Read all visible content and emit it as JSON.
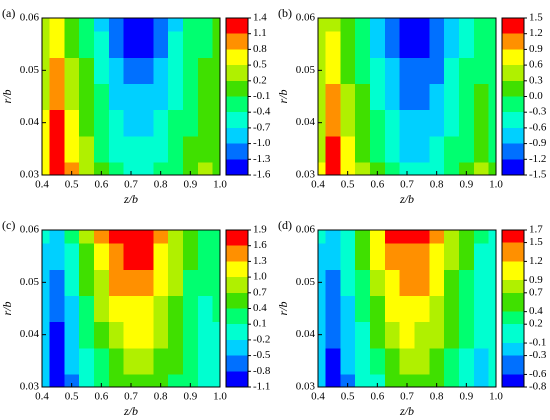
{
  "chart_data": [
    {
      "type": "contour",
      "panel_label": "(a)",
      "xlabel": "z/b",
      "ylabel": "r/b",
      "xlim": [
        0.4,
        1.0
      ],
      "ylim": [
        0.03,
        0.06
      ],
      "xticks": [
        0.4,
        0.5,
        0.6,
        0.7,
        0.8,
        0.9,
        {
          "value": 1,
          "label": "1.0"
        }
      ],
      "yticks": [
        0.03,
        0.04,
        0.05,
        0.06
      ],
      "levels": [
        -1.6,
        -1.3,
        {
          "value": -1,
          "label": "-1.0"
        },
        -0.7,
        -0.4,
        -0.1,
        0.2,
        0.5,
        0.8,
        1.1,
        1.4
      ],
      "colors": [
        "#0000ff",
        "#0070ff",
        "#00d0ff",
        "#00ffd0",
        "#00ff70",
        "#40e000",
        "#b0f000",
        "#ffff00",
        "#ff9000",
        "#ff0000"
      ],
      "x": [
        0.4,
        0.45,
        0.5,
        0.55,
        0.6,
        0.65,
        0.7,
        0.75,
        0.8,
        0.85,
        0.9,
        0.95,
        1
      ],
      "y": [
        0.03,
        0.035,
        0.04,
        0.045,
        0.05,
        0.055,
        0.06
      ],
      "z": [
        [
          0.6,
          1.4,
          0.8,
          0.3,
          0,
          -0.3,
          -0.5,
          -0.5,
          -0.35,
          -0.2,
          0,
          0.25,
          0
        ],
        [
          0.55,
          1.25,
          0.67,
          0.2,
          -0.13,
          -0.45,
          -0.67,
          -0.67,
          -0.49,
          -0.3,
          -0.07,
          0.17,
          -0.02
        ],
        [
          0.5,
          1.1,
          0.53,
          0.1,
          -0.27,
          -0.6,
          -0.83,
          -0.83,
          -0.63,
          -0.4,
          -0.13,
          0.1,
          -0.03
        ],
        [
          0.45,
          0.95,
          0.4,
          0,
          -0.4,
          -0.75,
          -1.0,
          -1.0,
          -0.78,
          -0.5,
          -0.2,
          0.03,
          -0.05
        ],
        [
          0.4,
          0.8,
          0.27,
          -0.1,
          -0.53,
          -0.9,
          -1.17,
          -1.17,
          -0.92,
          -0.6,
          -0.27,
          -0.05,
          -0.07
        ],
        [
          0.35,
          0.65,
          0.13,
          -0.2,
          -0.67,
          -1.05,
          -1.33,
          -1.33,
          -1.06,
          -0.7,
          -0.33,
          -0.13,
          -0.08
        ],
        [
          0.3,
          0.5,
          0,
          -0.3,
          -0.8,
          -1.2,
          -1.5,
          -1.5,
          -1.2,
          -0.8,
          -0.4,
          -0.2,
          -0.1
        ]
      ]
    },
    {
      "type": "contour",
      "panel_label": "(b)",
      "xlabel": "z/b",
      "ylabel": "r/b",
      "xlim": [
        0.4,
        1.0
      ],
      "ylim": [
        0.03,
        0.06
      ],
      "xticks": [
        0.4,
        0.5,
        0.6,
        0.7,
        0.8,
        0.9,
        {
          "value": 1,
          "label": "1.0"
        }
      ],
      "yticks": [
        0.03,
        0.04,
        0.05,
        0.06
      ],
      "levels": [
        -1.5,
        -1.2,
        -0.9,
        -0.6,
        -0.3,
        {
          "value": 0,
          "label": "0.0"
        },
        0.3,
        0.6,
        0.9,
        1.2,
        1.5
      ],
      "colors": [
        "#0000ff",
        "#0070ff",
        "#00d0ff",
        "#00ffd0",
        "#00ff70",
        "#40e000",
        "#b0f000",
        "#ffff00",
        "#ff9000",
        "#ff0000"
      ],
      "x": [
        0.4,
        0.45,
        0.5,
        0.55,
        0.6,
        0.65,
        0.7,
        0.75,
        0.8,
        0.85,
        0.9,
        0.95,
        1
      ],
      "y": [
        0.03,
        0.035,
        0.04,
        0.045,
        0.05,
        0.055,
        0.06
      ],
      "z": [
        [
          0.6,
          1.45,
          0.8,
          0.3,
          0,
          -0.3,
          -0.5,
          -0.5,
          -0.35,
          -0.2,
          0,
          0.3,
          0
        ],
        [
          0.55,
          1.25,
          0.67,
          0.2,
          -0.13,
          -0.45,
          -0.67,
          -0.67,
          -0.49,
          -0.3,
          -0.07,
          0.17,
          -0.02
        ],
        [
          0.5,
          1.1,
          0.53,
          0.1,
          -0.27,
          -0.6,
          -0.83,
          -0.83,
          -0.63,
          -0.4,
          -0.13,
          0.1,
          -0.03
        ],
        [
          0.45,
          0.95,
          0.4,
          0,
          -0.4,
          -0.75,
          -1.0,
          -1.0,
          -0.78,
          -0.5,
          -0.2,
          0.03,
          -0.05
        ],
        [
          0.4,
          0.8,
          0.27,
          -0.1,
          -0.53,
          -0.9,
          -1.17,
          -1.17,
          -0.92,
          -0.6,
          -0.27,
          -0.05,
          -0.07
        ],
        [
          0.35,
          0.65,
          0.13,
          -0.2,
          -0.67,
          -1.05,
          -1.33,
          -1.33,
          -1.06,
          -0.7,
          -0.33,
          -0.13,
          -0.08
        ],
        [
          0.3,
          0.5,
          0,
          -0.3,
          -0.8,
          -1.2,
          -1.5,
          -1.5,
          -1.2,
          -0.8,
          -0.4,
          -0.2,
          -0.1
        ]
      ]
    },
    {
      "type": "contour",
      "panel_label": "(c)",
      "xlabel": "z/b",
      "ylabel": "r/b",
      "xlim": [
        0.4,
        1.0
      ],
      "ylim": [
        0.03,
        0.06
      ],
      "xticks": [
        0.4,
        0.5,
        0.6,
        0.7,
        0.8,
        0.9,
        {
          "value": 1,
          "label": "1.0"
        }
      ],
      "yticks": [
        0.03,
        0.04,
        0.05,
        0.06
      ],
      "levels": [
        -1.1,
        -0.8,
        -0.5,
        -0.2,
        0.1,
        0.4,
        0.7,
        {
          "value": 1,
          "label": "1.0"
        },
        1.3,
        1.6,
        1.9
      ],
      "colors": [
        "#0000ff",
        "#0070ff",
        "#00d0ff",
        "#00ffd0",
        "#00ff70",
        "#40e000",
        "#b0f000",
        "#ffff00",
        "#ff9000",
        "#ff0000"
      ],
      "x": [
        0.4,
        0.45,
        0.5,
        0.55,
        0.6,
        0.65,
        0.7,
        0.75,
        0.8,
        0.85,
        0.9,
        0.95,
        1
      ],
      "y": [
        0.03,
        0.035,
        0.04,
        0.045,
        0.05,
        0.055,
        0.06
      ],
      "z": [
        [
          -0.5,
          -1.1,
          -0.6,
          -0.2,
          0.1,
          0.4,
          0.6,
          0.6,
          0.5,
          0.3,
          0.1,
          -0.2,
          0
        ],
        [
          -0.45,
          -0.97,
          -0.48,
          -0.05,
          0.3,
          0.63,
          0.82,
          0.8,
          0.65,
          0.4,
          0.17,
          -0.12,
          0.03
        ],
        [
          -0.4,
          -0.83,
          -0.37,
          0.1,
          0.5,
          0.87,
          1.03,
          1.0,
          0.8,
          0.5,
          0.23,
          -0.03,
          0.07
        ],
        [
          -0.35,
          -0.7,
          -0.25,
          0.25,
          0.7,
          1.1,
          1.25,
          1.2,
          0.95,
          0.6,
          0.3,
          0.05,
          0.1
        ],
        [
          -0.3,
          -0.57,
          -0.13,
          0.4,
          0.9,
          1.33,
          1.47,
          1.4,
          1.1,
          0.7,
          0.37,
          0.13,
          0.13
        ],
        [
          -0.25,
          -0.43,
          -0.02,
          0.55,
          1.1,
          1.57,
          1.68,
          1.6,
          1.25,
          0.8,
          0.43,
          0.22,
          0.17
        ],
        [
          -0.2,
          -0.3,
          0.1,
          0.7,
          1.3,
          1.8,
          1.9,
          1.8,
          1.4,
          0.9,
          0.5,
          0.3,
          0.2
        ]
      ]
    },
    {
      "type": "contour",
      "panel_label": "(d)",
      "xlabel": "z/b",
      "ylabel": "r/b",
      "xlim": [
        0.4,
        1.0
      ],
      "ylim": [
        0.03,
        0.06
      ],
      "xticks": [
        0.4,
        0.5,
        0.6,
        0.7,
        0.8,
        0.9,
        {
          "value": 1,
          "label": "1.0"
        }
      ],
      "yticks": [
        0.03,
        0.04,
        0.05,
        0.06
      ],
      "levels": [
        -0.8,
        -0.6,
        -0.3,
        -0.1,
        0.2,
        0.4,
        0.7,
        0.9,
        1.2,
        1.5,
        1.7
      ],
      "colors": [
        "#0000ff",
        "#0070ff",
        "#00d0ff",
        "#00ffd0",
        "#00ff70",
        "#40e000",
        "#b0f000",
        "#ffff00",
        "#ff9000",
        "#ff0000"
      ],
      "x": [
        0.4,
        0.45,
        0.5,
        0.55,
        0.6,
        0.65,
        0.7,
        0.75,
        0.8,
        0.85,
        0.9,
        0.95,
        1
      ],
      "y": [
        0.03,
        0.035,
        0.04,
        0.045,
        0.05,
        0.055,
        0.06
      ],
      "z": [
        [
          -0.3,
          -0.8,
          -0.4,
          -0.1,
          0.15,
          0.4,
          0.55,
          0.55,
          0.45,
          0.25,
          0.05,
          -0.2,
          0
        ],
        [
          -0.27,
          -0.7,
          -0.3,
          0,
          0.3,
          0.6,
          0.72,
          0.7,
          0.57,
          0.35,
          0.12,
          -0.12,
          0.02
        ],
        [
          -0.23,
          -0.6,
          -0.22,
          0.12,
          0.47,
          0.78,
          0.9,
          0.87,
          0.7,
          0.45,
          0.2,
          -0.05,
          0.05
        ],
        [
          -0.2,
          -0.5,
          -0.13,
          0.25,
          0.63,
          0.97,
          1.08,
          1.04,
          0.83,
          0.55,
          0.27,
          0.03,
          0.08
        ],
        [
          -0.17,
          -0.4,
          -0.05,
          0.38,
          0.8,
          1.15,
          1.27,
          1.2,
          0.97,
          0.65,
          0.33,
          0.1,
          0.1
        ],
        [
          -0.13,
          -0.3,
          0.03,
          0.5,
          0.97,
          1.33,
          1.45,
          1.37,
          1.1,
          0.75,
          0.4,
          0.18,
          0.13
        ],
        [
          -0.1,
          -0.2,
          0.12,
          0.63,
          1.13,
          1.52,
          1.65,
          1.55,
          1.23,
          0.85,
          0.47,
          0.25,
          0.15
        ]
      ]
    }
  ]
}
